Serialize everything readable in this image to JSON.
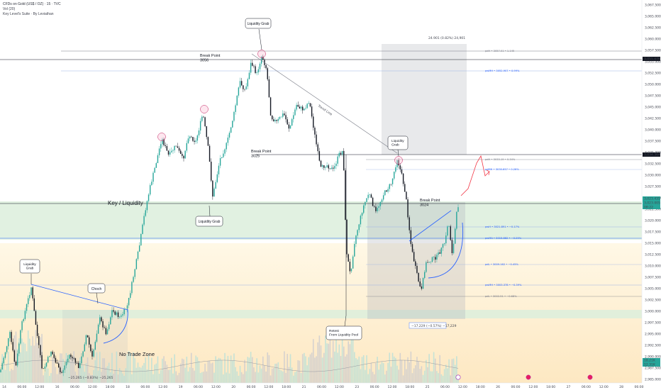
{
  "header": {
    "symbol": "CFDs on Gold (US$ / OZ) · 15 · TVC",
    "indicator_vol": "Vol (20)",
    "indicator_suite": "Key Level's Suite · By Leviathan"
  },
  "price_axis": {
    "ticks": [
      "3,067.500",
      "3,065.000",
      "3,062.500",
      "3,060.000",
      "3,057.500",
      "3,055.000",
      "3,052.500",
      "3,050.000",
      "3,047.500",
      "3,045.000",
      "3,042.500",
      "3,040.000",
      "3,037.500",
      "3,035.000",
      "3,032.500",
      "3,030.000",
      "3,027.500",
      "3,025.000",
      "3,022.500",
      "3,020.000",
      "3,017.500",
      "3,015.000",
      "3,012.500",
      "3,010.000",
      "3,007.500",
      "3,005.000",
      "3,002.500",
      "3,000.000",
      "2,997.500",
      "2,995.000",
      "2,992.500",
      "2,990.000",
      "2,987.500",
      "2,985.000"
    ],
    "tags": [
      {
        "text": "3,055.676",
        "color": "#131722"
      },
      {
        "text": "3,034.364",
        "color": "#131722"
      },
      {
        "text": "3,023.435",
        "color": "#26a69a"
      },
      {
        "text": "3,023.005",
        "color": "#26a69a"
      },
      {
        "text": "08:22",
        "color": "#26a69a"
      },
      {
        "text": "18.21K",
        "color": "#26a69a"
      },
      {
        "text": "12.31K",
        "color": "#26a69a"
      }
    ]
  },
  "time_axis": [
    "14",
    "06:00",
    "12:00",
    "16",
    "06:00",
    "12:00",
    "18:00",
    "18",
    "06:00",
    "12:00",
    "19",
    "06:00",
    "12:00",
    "20",
    "06:00",
    "12:00",
    "18:00",
    "21",
    "06:00",
    "12:00",
    "23",
    "06:00",
    "12:00",
    "18:00",
    "25",
    "06:00",
    "12:00",
    "18:00",
    "26",
    "06:00",
    "12:00",
    "18:00",
    "27",
    "06:00",
    "12:00",
    "28",
    "06:00"
  ],
  "annotations": {
    "liquidity_grab_top": "Liquidity Grab",
    "break_point_3056": "Break Point\n3056",
    "break_point_3025": "Break Point\n3025",
    "liquidity_grab_mid": "Liquidity Grab",
    "key_liquidity": "Key / Liquidity",
    "liquidity_grab_left": "Liquidity\nGrab",
    "choch": "Choch",
    "no_trade_zone": "No Trade Zone",
    "retest": "Retest\nFrom Liquidity Pool",
    "liquidity_grab_right": "Liquidity\nGrab",
    "break_point_3024": "Break Point\n3024",
    "trend_line": "Trend Line"
  },
  "measurements": {
    "top": "24.901 (0.82%) 24,901",
    "bottom": "−17.229 (−0.57%) −17,229",
    "left": "−25.265 (−0.83%) −25,265"
  },
  "fib_labels": [
    "pdH • 3057.01 • 1.145",
    "pwMH • 3052.907 • 0.99%",
    "pdH • 3033.19 • 0.34%",
    "pdMH • 3030.657 • 0.26%",
    "pwH • 3021.891 • −0.17%",
    "pwMA • 3015.882 • −0.25%",
    "pdL • 3009.162 • −0.45%",
    "pwMH • 3003.378 • −0.39%",
    "pdL • 3002.51 • −0.68%"
  ],
  "colors": {
    "bull": "#26a69a",
    "bear": "#131722",
    "blue_line": "#2962ff",
    "red_path": "#f23645",
    "liquidity_zone": "#d8ecd8",
    "sand_zone": "#fdf1d8",
    "gray_box": "#b2b5be"
  }
}
